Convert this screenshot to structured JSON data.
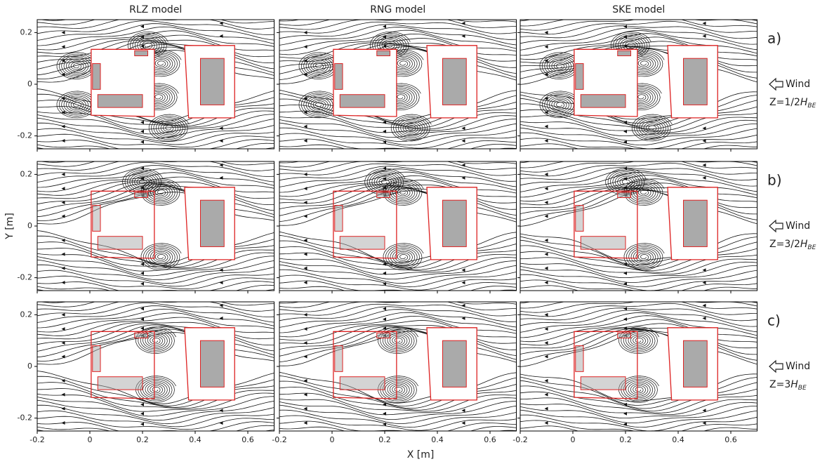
{
  "chart_data": {
    "type": "streamline",
    "columns": [
      "RLZ model",
      "RNG model",
      "SKE model"
    ],
    "rows": [
      {
        "label": "a)",
        "wind": "Wind",
        "height": {
          "prefix": "Z=1/2",
          "symbol": "H",
          "subscript": "BE"
        }
      },
      {
        "label": "b)",
        "wind": "Wind",
        "height": {
          "prefix": "Z=3/2",
          "symbol": "H",
          "subscript": "BE"
        }
      },
      {
        "label": "c)",
        "wind": "Wind",
        "height": {
          "prefix": "Z=3",
          "symbol": "H",
          "subscript": "BE"
        }
      }
    ],
    "xlabel": "X [m]",
    "ylabel": "Y [m]",
    "xlim": [
      -0.2,
      0.7
    ],
    "ylim": [
      -0.25,
      0.25
    ],
    "xticks": [
      -0.2,
      0,
      0.2,
      0.4,
      0.6
    ],
    "yticks": [
      -0.2,
      0,
      0.2
    ]
  }
}
